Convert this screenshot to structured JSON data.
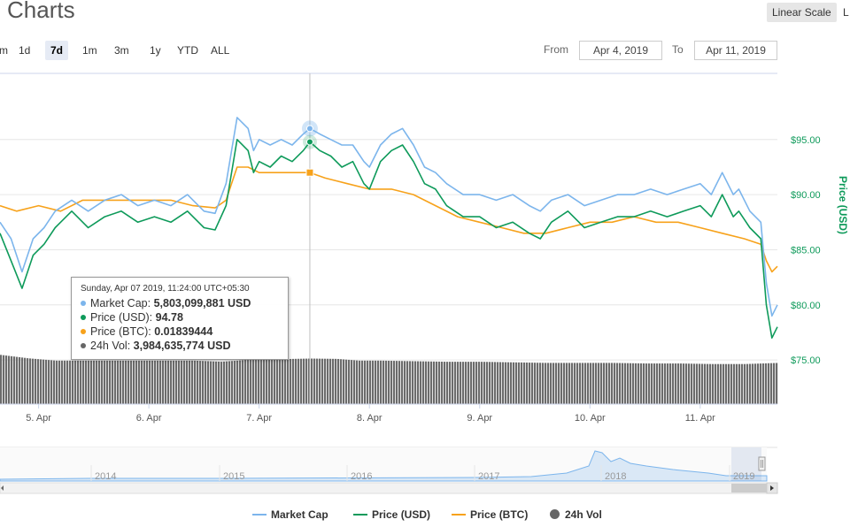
{
  "header": {
    "title": "Charts",
    "scale_linear": "Linear Scale",
    "scale_other": "L"
  },
  "zoom": {
    "options": [
      "m",
      "1d",
      "7d",
      "1m",
      "3m",
      "1y",
      "YTD",
      "ALL"
    ],
    "selected": "7d"
  },
  "range": {
    "from_label": "From",
    "from_value": "Apr 4, 2019",
    "to_label": "To",
    "to_value": "Apr 11, 2019"
  },
  "colors": {
    "market_cap": "#7cb5ec",
    "price_usd": "#0e9a5a",
    "price_btc": "#f7a21b",
    "volume": "#666666",
    "price_axis": "#0e9a5a"
  },
  "tooltip": {
    "header": "Sunday, Apr 07 2019, 11:24:00 UTC+05:30",
    "market_cap_label": "Market Cap:",
    "market_cap_value": "5,803,099,881 USD",
    "price_usd_label": "Price (USD):",
    "price_usd_value": "94.78",
    "price_btc_label": "Price (BTC):",
    "price_btc_value": "0.01839444",
    "vol_label": "24h Vol:",
    "vol_value": "3,984,635,774 USD"
  },
  "navigator": {
    "years": [
      "2014",
      "2015",
      "2016",
      "2017",
      "2018",
      "2019"
    ]
  },
  "chart_data": {
    "type": "line",
    "x_labels": [
      "5. Apr",
      "6. Apr",
      "7. Apr",
      "8. Apr",
      "9. Apr",
      "10. Apr",
      "11. Apr"
    ],
    "y_right_label": "Price (USD)",
    "y_ticks": [
      "$95.00",
      "$90.00",
      "$85.00",
      "$80.00",
      "$75.00"
    ],
    "y_tick_values": [
      95,
      90,
      85,
      80,
      75
    ],
    "ylim": [
      71,
      101
    ],
    "x_range": [
      4.65,
      11.7
    ],
    "legend": [
      "Market Cap",
      "Price (USD)",
      "Price (BTC)",
      "24h Vol"
    ],
    "series": [
      {
        "name": "Price (USD)",
        "x": [
          4.65,
          4.75,
          4.85,
          4.95,
          5.05,
          5.15,
          5.3,
          5.45,
          5.6,
          5.75,
          5.9,
          6.05,
          6.2,
          6.35,
          6.5,
          6.6,
          6.7,
          6.8,
          6.9,
          6.95,
          7.0,
          7.1,
          7.2,
          7.3,
          7.4,
          7.46,
          7.55,
          7.65,
          7.75,
          7.85,
          7.95,
          8.0,
          8.1,
          8.2,
          8.3,
          8.4,
          8.5,
          8.6,
          8.7,
          8.85,
          9.0,
          9.15,
          9.3,
          9.45,
          9.55,
          9.65,
          9.8,
          9.95,
          10.1,
          10.25,
          10.4,
          10.55,
          10.7,
          10.85,
          11.0,
          11.1,
          11.2,
          11.3,
          11.35,
          11.45,
          11.55,
          11.6,
          11.65,
          11.7
        ],
        "y": [
          86.5,
          84.0,
          81.5,
          84.5,
          85.5,
          87.0,
          88.5,
          87.0,
          88.0,
          88.5,
          87.5,
          88.0,
          87.5,
          88.5,
          87.0,
          86.8,
          89.0,
          95.0,
          94.0,
          92.0,
          93.0,
          92.5,
          93.5,
          93.0,
          94.0,
          94.78,
          94.0,
          93.5,
          92.5,
          93.0,
          91.0,
          90.5,
          93.0,
          94.0,
          94.5,
          93.0,
          91.0,
          90.5,
          89.0,
          88.0,
          88.0,
          87.0,
          87.5,
          86.5,
          86.0,
          87.5,
          88.5,
          87.0,
          87.5,
          88.0,
          88.0,
          88.5,
          88.0,
          88.5,
          89.0,
          88.0,
          90.0,
          88.0,
          88.5,
          87.0,
          86.0,
          80.0,
          77.0,
          78.0
        ]
      },
      {
        "name": "Market Cap",
        "x": [
          4.65,
          4.75,
          4.85,
          4.95,
          5.05,
          5.15,
          5.3,
          5.45,
          5.6,
          5.75,
          5.9,
          6.05,
          6.2,
          6.35,
          6.5,
          6.6,
          6.7,
          6.8,
          6.9,
          6.95,
          7.0,
          7.1,
          7.2,
          7.3,
          7.4,
          7.46,
          7.55,
          7.65,
          7.75,
          7.85,
          7.95,
          8.0,
          8.1,
          8.2,
          8.3,
          8.4,
          8.5,
          8.6,
          8.7,
          8.85,
          9.0,
          9.15,
          9.3,
          9.45,
          9.55,
          9.65,
          9.8,
          9.95,
          10.1,
          10.25,
          10.4,
          10.55,
          10.7,
          10.85,
          11.0,
          11.1,
          11.2,
          11.3,
          11.35,
          11.45,
          11.55,
          11.6,
          11.65,
          11.7
        ],
        "y": [
          87.5,
          86.0,
          83.0,
          86.0,
          87.0,
          88.5,
          89.5,
          88.5,
          89.5,
          90.0,
          89.0,
          89.5,
          89.0,
          90.0,
          88.5,
          88.3,
          91.0,
          97.0,
          96.0,
          94.0,
          95.0,
          94.5,
          95.0,
          94.5,
          95.5,
          96.0,
          95.5,
          95.0,
          94.5,
          94.5,
          93.0,
          92.5,
          94.5,
          95.5,
          96.0,
          94.5,
          92.5,
          92.0,
          91.0,
          90.0,
          90.0,
          89.5,
          90.0,
          89.0,
          88.5,
          89.5,
          90.0,
          89.0,
          89.5,
          90.0,
          90.0,
          90.5,
          90.0,
          90.5,
          91.0,
          90.0,
          92.0,
          90.0,
          90.5,
          88.5,
          87.5,
          82.0,
          79.0,
          80.0
        ]
      },
      {
        "name": "Price (BTC)",
        "x": [
          4.65,
          4.8,
          5.0,
          5.2,
          5.4,
          5.6,
          5.8,
          6.0,
          6.2,
          6.4,
          6.6,
          6.7,
          6.8,
          6.9,
          7.0,
          7.2,
          7.46,
          7.6,
          7.8,
          8.0,
          8.2,
          8.4,
          8.6,
          8.8,
          9.0,
          9.2,
          9.4,
          9.6,
          9.8,
          10.0,
          10.2,
          10.4,
          10.6,
          10.8,
          11.0,
          11.2,
          11.4,
          11.55,
          11.6,
          11.65,
          11.7
        ],
        "y": [
          89.0,
          88.5,
          89.0,
          88.5,
          89.5,
          89.5,
          89.5,
          89.5,
          89.5,
          89.0,
          88.8,
          89.5,
          92.5,
          92.5,
          92.0,
          92.0,
          92.0,
          91.5,
          91.0,
          90.5,
          90.5,
          90.0,
          89.0,
          88.0,
          87.5,
          87.0,
          86.5,
          86.5,
          87.0,
          87.5,
          87.5,
          88.0,
          87.5,
          87.5,
          87.0,
          86.5,
          86.0,
          85.5,
          84.0,
          83.0,
          83.5
        ]
      },
      {
        "name": "24h Vol",
        "x": [
          4.65,
          4.9,
          5.15,
          5.4,
          5.65,
          5.9,
          6.15,
          6.4,
          6.65,
          6.8,
          6.9,
          7.1,
          7.3,
          7.46,
          7.7,
          7.9,
          8.1,
          8.4,
          8.7,
          9.0,
          9.3,
          9.6,
          9.9,
          10.2,
          10.5,
          10.8,
          11.1,
          11.4,
          11.7
        ],
        "y": [
          4.3,
          4.0,
          3.8,
          3.8,
          3.8,
          3.8,
          3.8,
          3.8,
          3.7,
          3.8,
          3.9,
          3.9,
          3.95,
          3.98,
          3.95,
          3.8,
          3.8,
          3.75,
          3.7,
          3.7,
          3.65,
          3.6,
          3.6,
          3.6,
          3.55,
          3.55,
          3.5,
          3.5,
          3.6
        ]
      }
    ]
  }
}
